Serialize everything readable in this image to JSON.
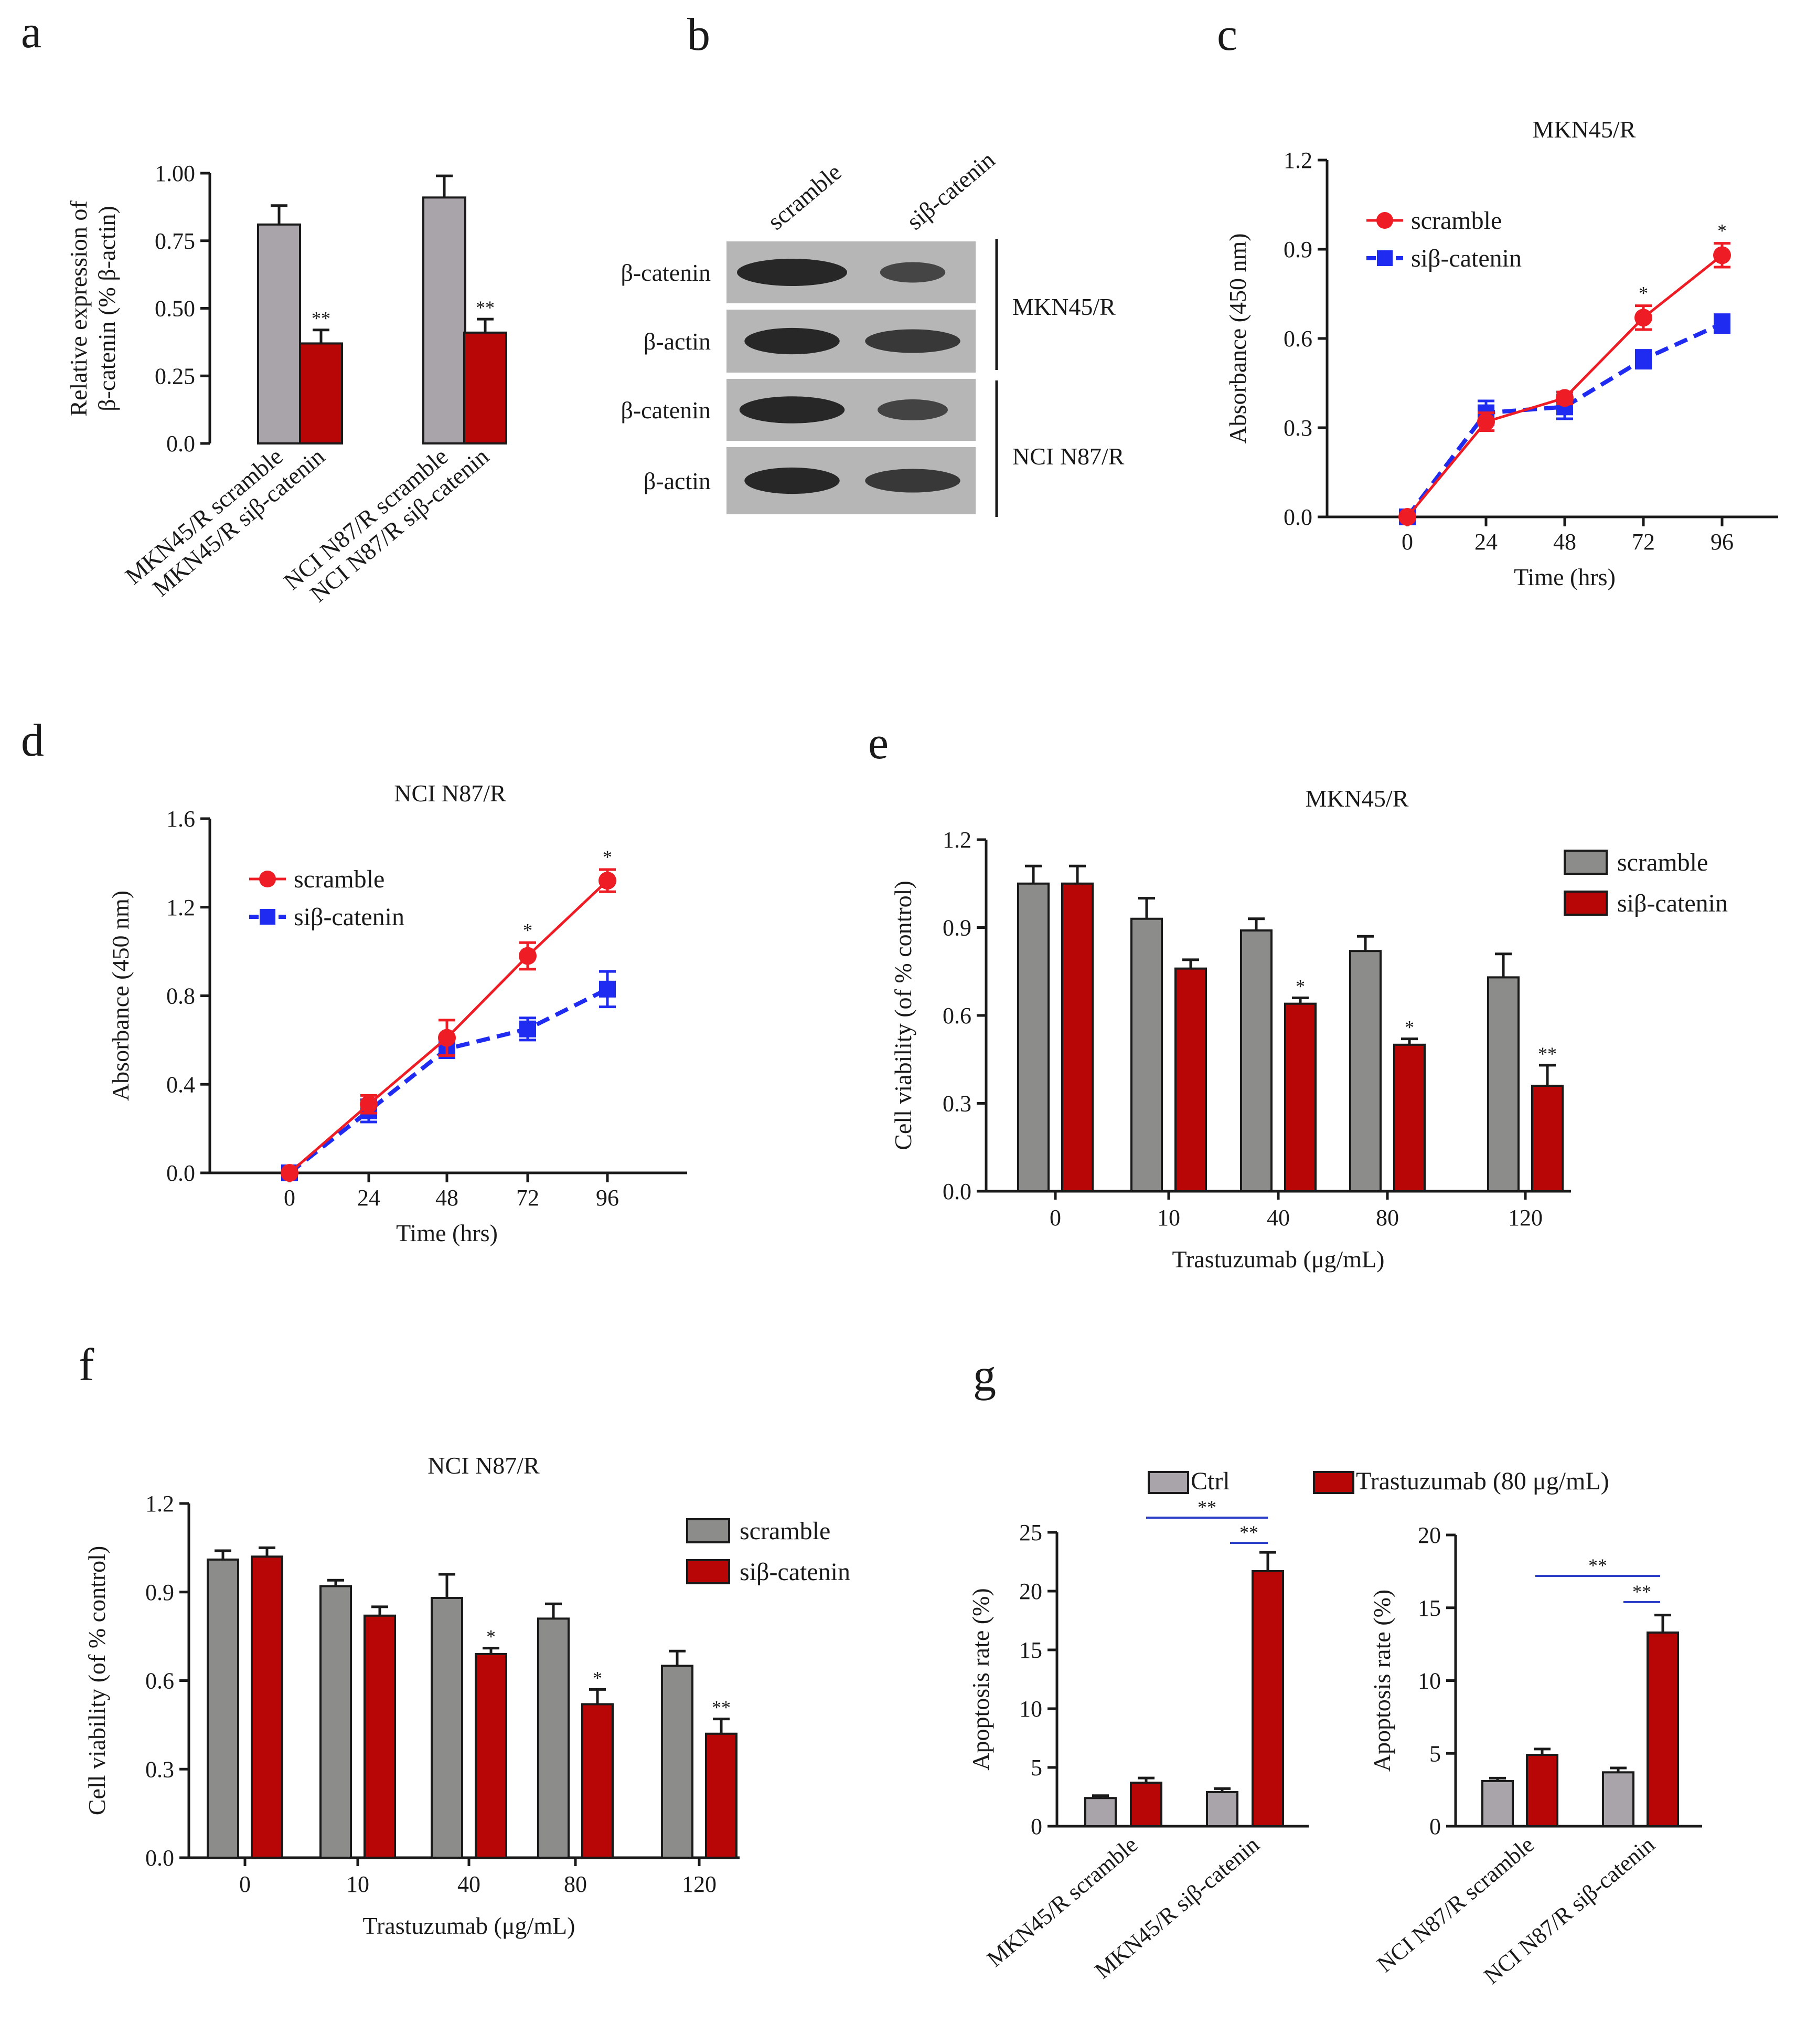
{
  "colors": {
    "gray": "#a8a4aa",
    "gray_dark": "#8c8c8a",
    "red": "#b80606",
    "line_red": "#ee1c24",
    "line_blue": "#1f2bf0",
    "sig_line": "#2b3fc8",
    "ink": "#1a1a1a"
  },
  "panel_b": {
    "letter": "b",
    "lane_labels": [
      "scramble",
      "siβ-catenin"
    ],
    "rows": [
      "β-catenin",
      "β-actin",
      "β-catenin",
      "β-actin"
    ],
    "groups": [
      "MKN45/R",
      "NCI N87/R"
    ]
  },
  "chart_data": [
    {
      "id": "a",
      "letter": "a",
      "type": "bar",
      "title": "",
      "ylabel": "Relative expression of β-catenin (% β-actin)",
      "ylabel_lines": [
        "Relative expression of",
        "β-catenin (% β-actin)"
      ],
      "xlabel": "",
      "ylim": [
        0,
        1.0
      ],
      "yticks": [
        "0.0",
        "0.25",
        "0.50",
        "0.75",
        "1.00"
      ],
      "categories": [
        "MKN45/R scramble",
        "MKN45/R siβ-catenin",
        "NCI N87/R scramble",
        "NCI N87/R siβ-catenin"
      ],
      "values": [
        0.81,
        0.37,
        0.91,
        0.41
      ],
      "errors": [
        0.07,
        0.05,
        0.08,
        0.05
      ],
      "bar_colors": [
        "gray",
        "red",
        "gray",
        "red"
      ],
      "significance": [
        "",
        "**",
        "",
        "**"
      ]
    },
    {
      "id": "c",
      "letter": "c",
      "type": "line",
      "title": "MKN45/R",
      "xlabel": "Time (hrs)",
      "ylabel": "Absorbance (450 nm)",
      "x": [
        0,
        24,
        48,
        72,
        96
      ],
      "xticks": [
        "0",
        "24",
        "48",
        "72",
        "96"
      ],
      "ylim": [
        0,
        1.2
      ],
      "yticks": [
        "0.0",
        "0.3",
        "0.6",
        "0.9",
        "1.2"
      ],
      "series": [
        {
          "name": "scramble",
          "values": [
            0.0,
            0.32,
            0.4,
            0.67,
            0.88
          ],
          "errors": [
            0,
            0.03,
            0.02,
            0.04,
            0.04
          ],
          "color": "line_red",
          "marker": "circle",
          "dash": false,
          "significance": [
            "",
            "",
            "",
            "*",
            "*"
          ]
        },
        {
          "name": "siβ-catenin",
          "values": [
            0.0,
            0.35,
            0.37,
            0.53,
            0.65
          ],
          "errors": [
            0,
            0.04,
            0.04,
            0.03,
            0.03
          ],
          "color": "line_blue",
          "marker": "square",
          "dash": true,
          "significance": [
            "",
            "",
            "",
            "",
            ""
          ]
        }
      ],
      "legend": "top-left"
    },
    {
      "id": "d",
      "letter": "d",
      "type": "line",
      "title": "NCI N87/R",
      "xlabel": "Time (hrs)",
      "ylabel": "Absorbance (450 nm)",
      "x": [
        0,
        24,
        48,
        72,
        96
      ],
      "xticks": [
        "0",
        "24",
        "48",
        "72",
        "96"
      ],
      "ylim": [
        0,
        1.6
      ],
      "yticks": [
        "0.0",
        "0.4",
        "0.8",
        "1.2",
        "1.6"
      ],
      "series": [
        {
          "name": "scramble",
          "values": [
            0.0,
            0.31,
            0.61,
            0.98,
            1.32
          ],
          "errors": [
            0,
            0.04,
            0.08,
            0.06,
            0.05
          ],
          "color": "line_red",
          "marker": "circle",
          "dash": false,
          "significance": [
            "",
            "",
            "",
            "*",
            "*"
          ]
        },
        {
          "name": "siβ-catenin",
          "values": [
            0.0,
            0.28,
            0.56,
            0.65,
            0.83
          ],
          "errors": [
            0,
            0.05,
            0.04,
            0.05,
            0.08
          ],
          "color": "line_blue",
          "marker": "square",
          "dash": true,
          "significance": [
            "",
            "",
            "",
            "",
            ""
          ]
        }
      ],
      "legend": "top-left"
    },
    {
      "id": "e",
      "letter": "e",
      "type": "bar",
      "title": "MKN45/R",
      "xlabel": "Trastuzumab (μg/mL)",
      "ylabel": "Cell viability (of % control)",
      "categories": [
        "0",
        "10",
        "40",
        "80",
        "120"
      ],
      "ylim": [
        0,
        1.2
      ],
      "yticks": [
        "0.0",
        "0.3",
        "0.6",
        "0.9",
        "1.2"
      ],
      "series": [
        {
          "name": "scramble",
          "values": [
            1.05,
            0.93,
            0.89,
            0.82,
            0.73
          ],
          "errors": [
            0.06,
            0.07,
            0.04,
            0.05,
            0.08
          ],
          "color": "gray_dark"
        },
        {
          "name": "siβ-catenin",
          "values": [
            1.05,
            0.76,
            0.64,
            0.5,
            0.36
          ],
          "errors": [
            0.06,
            0.03,
            0.02,
            0.02,
            0.07
          ],
          "color": "red",
          "significance": [
            "",
            "",
            "*",
            "*",
            "**"
          ]
        }
      ],
      "legend": "top-right"
    },
    {
      "id": "f",
      "letter": "f",
      "type": "bar",
      "title": "NCI N87/R",
      "xlabel": "Trastuzumab (μg/mL)",
      "ylabel": "Cell viability (of % control)",
      "categories": [
        "0",
        "10",
        "40",
        "80",
        "120"
      ],
      "ylim": [
        0,
        1.2
      ],
      "yticks": [
        "0.0",
        "0.3",
        "0.6",
        "0.9",
        "1.2"
      ],
      "series": [
        {
          "name": "scramble",
          "values": [
            1.01,
            0.92,
            0.88,
            0.81,
            0.65
          ],
          "errors": [
            0.03,
            0.02,
            0.08,
            0.05,
            0.05
          ],
          "color": "gray_dark"
        },
        {
          "name": "siβ-catenin",
          "values": [
            1.02,
            0.82,
            0.69,
            0.52,
            0.42
          ],
          "errors": [
            0.03,
            0.03,
            0.02,
            0.05,
            0.05
          ],
          "color": "red",
          "significance": [
            "",
            "",
            "*",
            "*",
            "**"
          ]
        }
      ],
      "legend": "top-right"
    },
    {
      "id": "g1",
      "letter": "g",
      "type": "bar",
      "title": "",
      "ylabel": "Apoptosis rate (%)",
      "xlabel": "",
      "categories": [
        "MKN45/R scramble",
        "MKN45/R siβ-catenin"
      ],
      "ylim": [
        0,
        25
      ],
      "yticks": [
        "0",
        "5",
        "10",
        "15",
        "20",
        "25"
      ],
      "series": [
        {
          "name": "Ctrl",
          "values": [
            2.4,
            2.9
          ],
          "errors": [
            0.2,
            0.3
          ],
          "color": "gray"
        },
        {
          "name": "Trastuzumab (80 μg/mL)",
          "values": [
            3.7,
            21.7
          ],
          "errors": [
            0.4,
            1.6
          ],
          "color": "red"
        }
      ],
      "comparisons": [
        {
          "label": "**",
          "from": "MKN45/R scramble / Trastuzumab (80 μg/mL)",
          "to": "MKN45/R siβ-catenin / Trastuzumab (80 μg/mL)"
        },
        {
          "label": "**",
          "from": "MKN45/R siβ-catenin / Ctrl",
          "to": "MKN45/R siβ-catenin / Trastuzumab (80 μg/mL)"
        }
      ]
    },
    {
      "id": "g2",
      "type": "bar",
      "title": "",
      "ylabel": "Apoptosis rate (%)",
      "xlabel": "",
      "categories": [
        "NCI N87/R scramble",
        "NCI N87/R siβ-catenin"
      ],
      "ylim": [
        0,
        20
      ],
      "yticks": [
        "0",
        "5",
        "10",
        "15",
        "20"
      ],
      "series": [
        {
          "name": "Ctrl",
          "values": [
            3.1,
            3.7
          ],
          "errors": [
            0.2,
            0.3
          ],
          "color": "gray"
        },
        {
          "name": "Trastuzumab (80 μg/mL)",
          "values": [
            4.9,
            13.3
          ],
          "errors": [
            0.4,
            1.2
          ],
          "color": "red"
        }
      ],
      "comparisons": [
        {
          "label": "**",
          "from": "NCI N87/R scramble / Trastuzumab (80 μg/mL)",
          "to": "NCI N87/R siβ-catenin / Trastuzumab (80 μg/mL)"
        },
        {
          "label": "**",
          "from": "NCI N87/R siβ-catenin / Ctrl",
          "to": "NCI N87/R siβ-catenin / Trastuzumab (80 μg/mL)"
        }
      ]
    }
  ],
  "legend_g": [
    {
      "name": "Ctrl",
      "color": "gray"
    },
    {
      "name": "Trastuzumab (80 μg/mL)",
      "color": "red"
    }
  ]
}
